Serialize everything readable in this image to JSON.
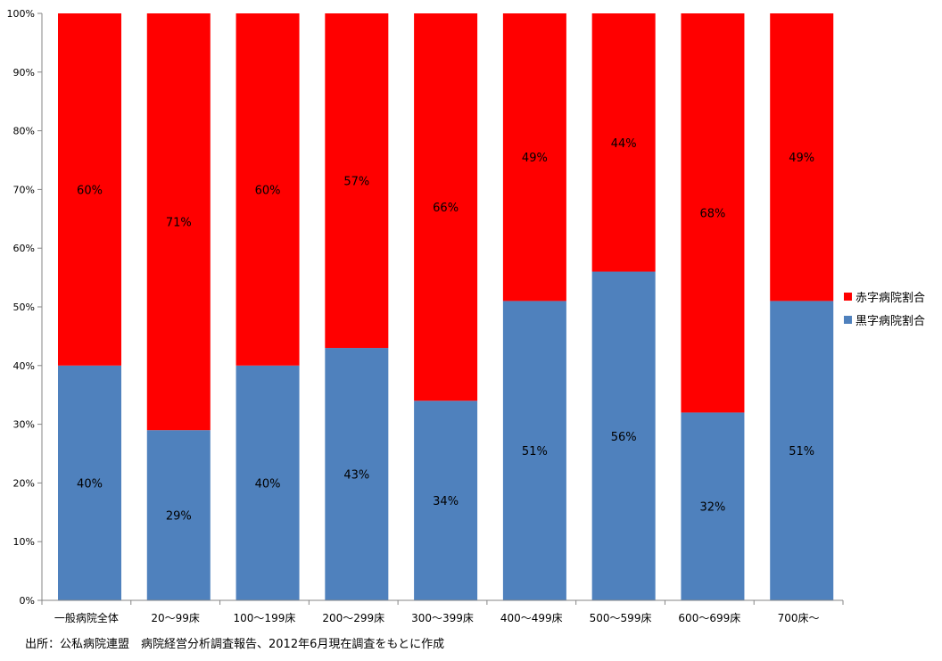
{
  "chart_data": {
    "type": "bar",
    "stacked": true,
    "percent_stacked": true,
    "categories": [
      "一般病院全体",
      "20～99床",
      "100～199床",
      "200～299床",
      "300～399床",
      "400～499床",
      "500～599床",
      "600～699床",
      "700床～"
    ],
    "series": [
      {
        "name": "黒字病院割合",
        "color": "#4F81BD",
        "values": [
          40,
          29,
          40,
          43,
          34,
          51,
          56,
          32,
          51
        ],
        "labels": [
          "40%",
          "29%",
          "40%",
          "43%",
          "34%",
          "51%",
          "56%",
          "32%",
          "51%"
        ]
      },
      {
        "name": "赤字病院割合",
        "color": "#FF0000",
        "values": [
          60,
          71,
          60,
          57,
          66,
          49,
          44,
          68,
          49
        ],
        "labels": [
          "60%",
          "71%",
          "60%",
          "57%",
          "66%",
          "49%",
          "44%",
          "68%",
          "49%"
        ]
      }
    ],
    "ylim": [
      0,
      100
    ],
    "yticks": [
      "0%",
      "10%",
      "20%",
      "30%",
      "40%",
      "50%",
      "60%",
      "70%",
      "80%",
      "90%",
      "100%"
    ],
    "grid": false,
    "legend_position": "right",
    "title": "",
    "xlabel": "",
    "ylabel": ""
  },
  "source": "出所：公私病院連盟　病院経営分析調査報告、2012年6月現在調査をもとに作成"
}
